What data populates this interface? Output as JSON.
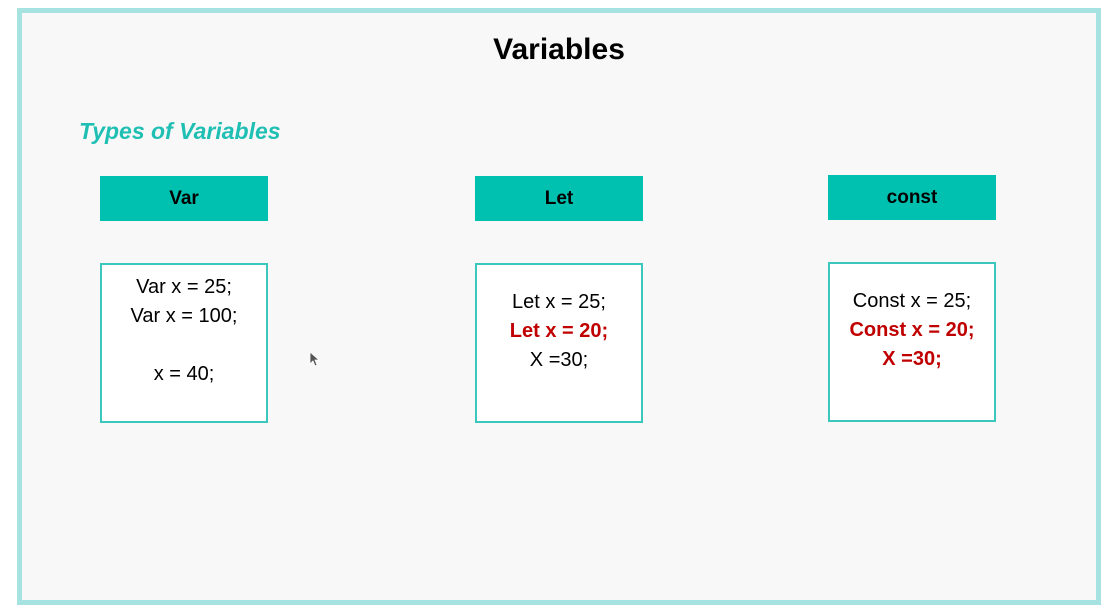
{
  "slide": {
    "title": "Variables",
    "subtitle": "Types of Variables"
  },
  "columns": [
    {
      "header": "Var",
      "lines": [
        "Var x = 25;",
        "Var x = 100;",
        "",
        "x = 40;"
      ]
    },
    {
      "header": "Let",
      "lines": [
        "Let x = 25;",
        "Let x = 20;",
        "X =30;"
      ]
    },
    {
      "header": "const",
      "lines": [
        "Const x = 25;",
        "Const x = 20;",
        "X =30;"
      ]
    }
  ],
  "colors": {
    "frame_border": "#a6e3e0",
    "header_bg": "#00c0b0",
    "subtitle": "#1fbfb4",
    "error_text": "#c00000"
  },
  "icons": [
    "mouse-cursor-icon"
  ]
}
